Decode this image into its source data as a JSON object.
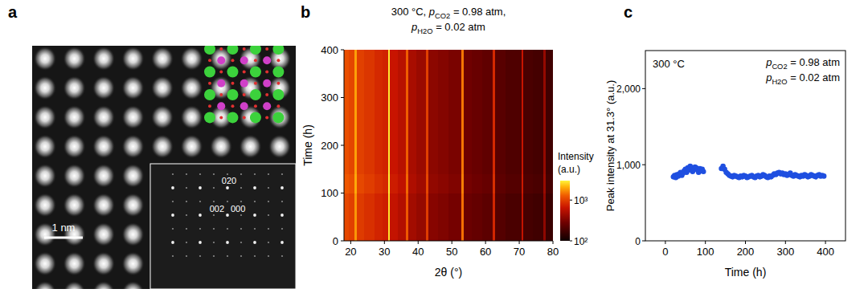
{
  "panel_labels": [
    "a",
    "b",
    "c"
  ],
  "image": {
    "scale_bar": "1 nm",
    "fft_labels": [
      "020",
      "002",
      "000"
    ]
  },
  "chart_data": [
    {
      "type": "heatmap",
      "title": "300 °C, pCO2 = 0.98 atm, pH2O = 0.02 atm",
      "x_label": "2θ (°)",
      "y_label": "Time (h)",
      "x_edges": [
        18,
        19.5,
        21.2,
        21.8,
        24,
        27,
        29.5,
        31,
        31.6,
        34,
        36.4,
        37,
        39.5,
        42.4,
        43,
        46,
        49,
        52.9,
        53.5,
        56,
        59,
        62.2,
        62.8,
        66,
        70.6,
        71.2,
        74,
        77.2,
        77.8,
        80
      ],
      "y_edges": [
        0,
        100,
        140,
        400
      ],
      "cells": [
        [
          1080,
          990,
          1800,
          950,
          850,
          760,
          710,
          2700,
          620,
          530,
          1250,
          455,
          400,
          960,
          350,
          325,
          295,
          1450,
          265,
          250,
          230,
          770,
          210,
          190,
          620,
          180,
          170,
          380,
          160
        ],
        [
          1250,
          1150,
          2000,
          1080,
          970,
          860,
          800,
          2900,
          700,
          600,
          1380,
          510,
          445,
          1060,
          390,
          360,
          330,
          1580,
          295,
          275,
          255,
          840,
          232,
          210,
          680,
          200,
          190,
          420,
          180
        ],
        [
          1150,
          1050,
          1900,
          1000,
          900,
          800,
          750,
          2800,
          650,
          560,
          1300,
          480,
          420,
          1000,
          370,
          340,
          310,
          1500,
          280,
          260,
          240,
          800,
          220,
          200,
          650,
          190,
          180,
          400,
          170
        ]
      ],
      "xlim": [
        18,
        80
      ],
      "ylim": [
        0,
        400
      ],
      "xticks": [
        20,
        30,
        40,
        50,
        60,
        70,
        80
      ],
      "yticks": [
        0,
        100,
        200,
        300,
        400
      ],
      "grid": false,
      "colorbar": {
        "label": "Intensity (a.u.)",
        "log": true,
        "range": [
          100,
          3000
        ],
        "ticks": [
          {
            "value": 100,
            "label": "10²"
          },
          {
            "value": 1000,
            "label": "10³"
          }
        ]
      }
    },
    {
      "type": "scatter",
      "y_label": "Peak intensity at 31.3° (a.u.)",
      "x_label": "Time (h)",
      "annotations": [
        "300 °C",
        "pCO2 = 0.98 atm",
        "pH2O = 0.02 atm"
      ],
      "x": [
        20,
        23,
        26,
        29,
        32,
        35,
        38,
        41,
        44,
        47,
        50,
        53,
        56,
        59,
        62,
        65,
        68,
        71,
        74,
        77,
        80,
        83,
        86,
        89,
        92,
        95,
        140,
        144,
        148,
        152,
        156,
        160,
        164,
        168,
        172,
        176,
        180,
        184,
        188,
        192,
        196,
        200,
        204,
        208,
        212,
        216,
        220,
        224,
        228,
        232,
        236,
        240,
        244,
        248,
        252,
        256,
        260,
        264,
        268,
        272,
        276,
        280,
        284,
        288,
        292,
        296,
        300,
        304,
        308,
        312,
        316,
        320,
        324,
        328,
        332,
        336,
        340,
        344,
        348,
        352,
        356,
        360,
        364,
        368,
        372,
        376,
        380,
        384,
        388,
        392,
        396
      ],
      "values": [
        840,
        860,
        830,
        870,
        850,
        880,
        900,
        860,
        890,
        920,
        940,
        900,
        960,
        930,
        980,
        950,
        910,
        940,
        970,
        960,
        930,
        900,
        950,
        920,
        940,
        910,
        950,
        980,
        940,
        900,
        880,
        860,
        850,
        840,
        860,
        850,
        840,
        830,
        850,
        840,
        860,
        850,
        830,
        840,
        850,
        860,
        840,
        830,
        850,
        860,
        840,
        850,
        870,
        860,
        840,
        830,
        850,
        840,
        860,
        880,
        870,
        890,
        900,
        880,
        890,
        870,
        880,
        860,
        870,
        890,
        860,
        850,
        870,
        860,
        850,
        840,
        860,
        850,
        870,
        860,
        840,
        850,
        870,
        860,
        850,
        840,
        860,
        870,
        850,
        860,
        850
      ],
      "color": "#1f4fe0",
      "marker": "circle",
      "xlim": [
        -50,
        450
      ],
      "ylim": [
        0,
        2500
      ],
      "xticks": [
        0,
        100,
        200,
        300,
        400
      ],
      "yticks": [
        0,
        {
          "value": 1000,
          "label": "1,000"
        },
        {
          "value": 2000,
          "label": "2,000"
        }
      ],
      "grid": false
    }
  ]
}
